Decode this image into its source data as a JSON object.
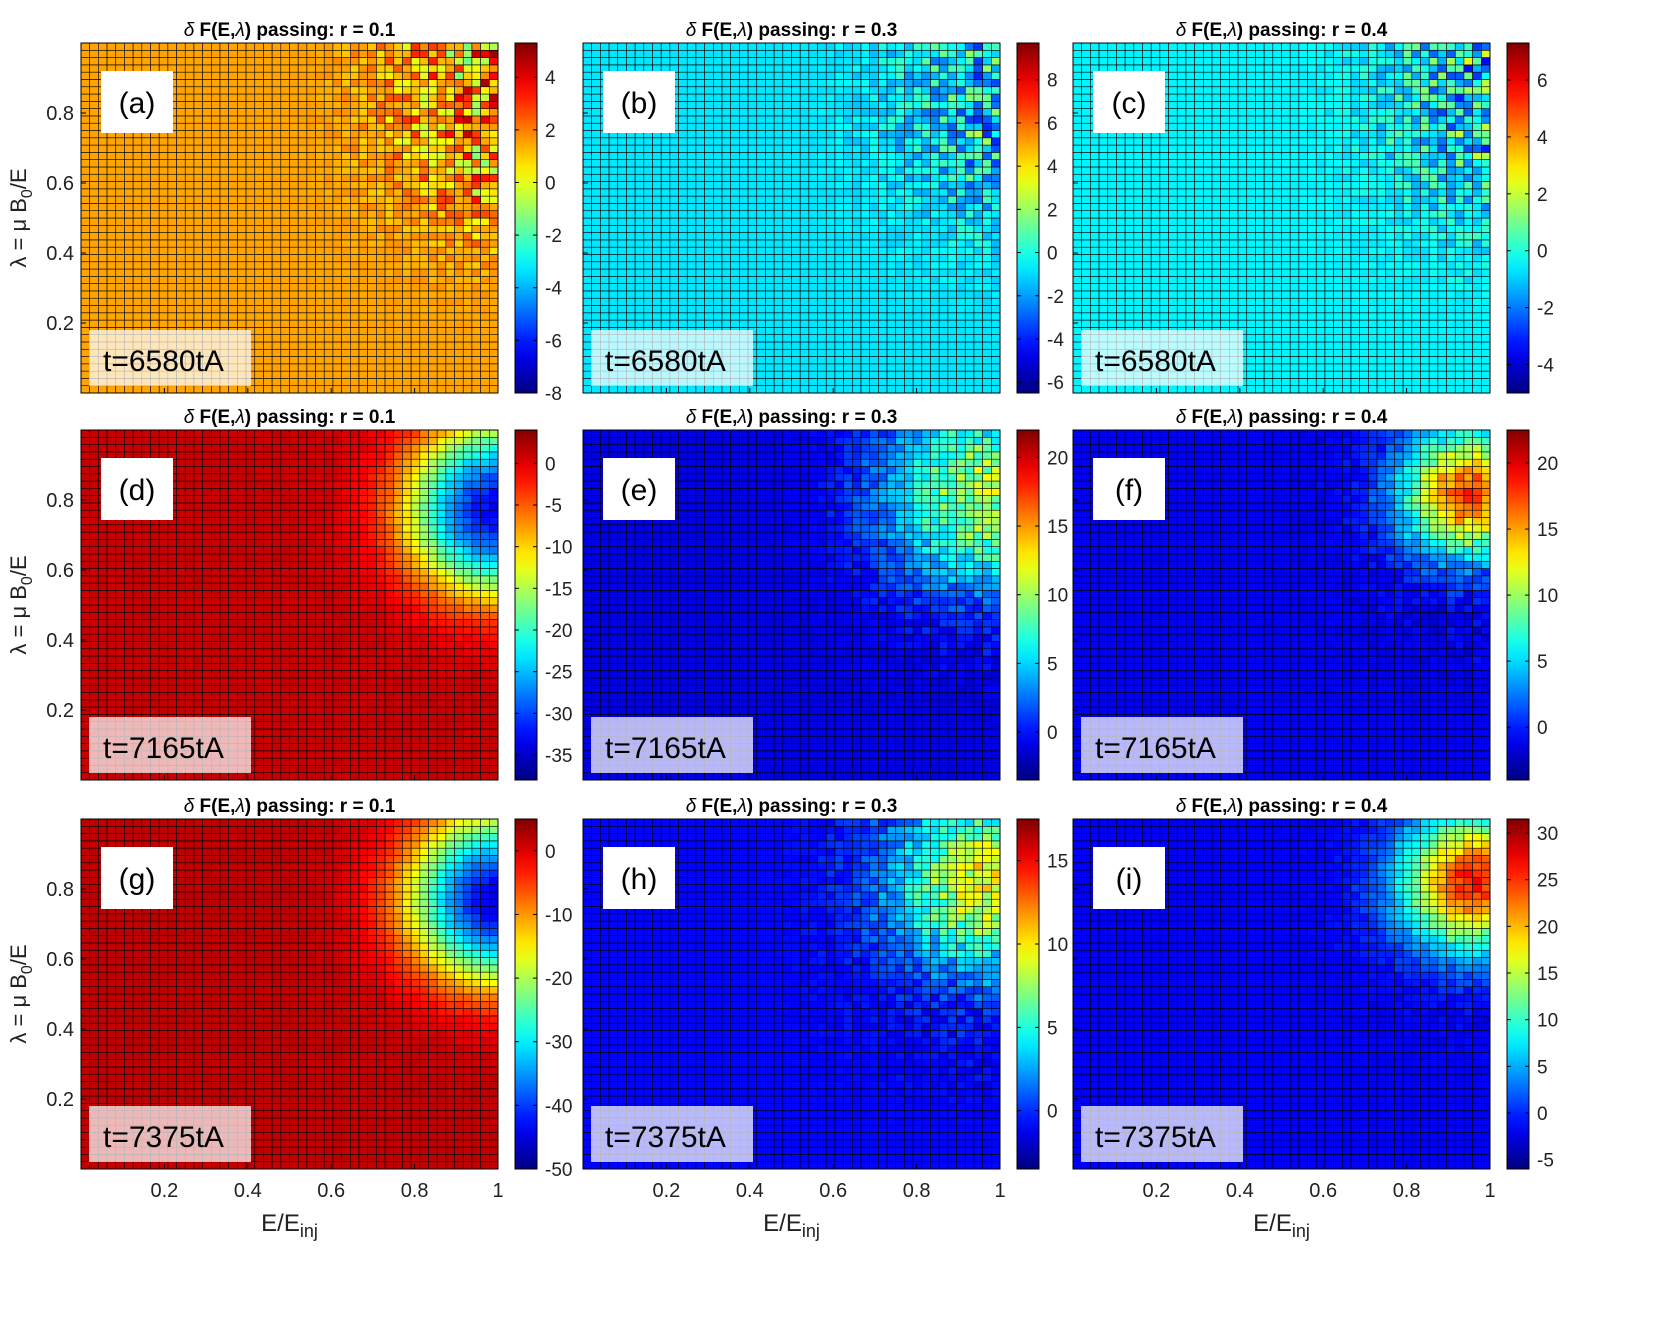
{
  "figure": {
    "ylabel": "λ = μ B",
    "ylabel_sub": "0",
    "ylabel_end": "/E",
    "xlabel": "E/E",
    "xlabel_sub": "inj"
  },
  "chart_data": [
    {
      "type": "heatmap",
      "panel": "(a)",
      "time": "t=6580tA",
      "title_prefix": "δ",
      "title_main": " F(E,",
      "title_lambda": "λ",
      "title_rest": ") passing: r = 0.1",
      "r": 0.1,
      "clim": [
        -8,
        5.3
      ],
      "cbar_ticks": [
        -8,
        -6,
        -4,
        -2,
        0,
        2,
        4
      ],
      "xlim": [
        0,
        1
      ],
      "ylim": [
        0,
        1
      ],
      "xticks": [
        0.2,
        0.4,
        0.6,
        0.8,
        1
      ],
      "yticks": [
        0.2,
        0.4,
        0.6,
        0.8
      ],
      "ylabel": "λ = μ B0/E",
      "xlabel": "",
      "grid": [
        48,
        48
      ],
      "pattern": "noise",
      "base": 1.5,
      "center": [
        0.95,
        0.8
      ],
      "radius": 0.3,
      "amp": 0,
      "noise": 3.5,
      "color_low": "#0000b0",
      "color_high": "#a00000"
    },
    {
      "type": "heatmap",
      "panel": "(b)",
      "time": "t=6580tA",
      "title_prefix": "δ",
      "title_main": " F(E,",
      "title_lambda": "λ",
      "title_rest": ") passing: r = 0.3",
      "r": 0.3,
      "clim": [
        -6.5,
        9.7
      ],
      "cbar_ticks": [
        -6,
        -4,
        -2,
        0,
        2,
        4,
        6,
        8
      ],
      "xlim": [
        0,
        1
      ],
      "ylim": [
        0,
        1
      ],
      "xticks": [
        0.2,
        0.4,
        0.6,
        0.8,
        1
      ],
      "yticks": [
        0.2,
        0.4,
        0.6,
        0.8
      ],
      "ylabel": "",
      "xlabel": "",
      "grid": [
        48,
        48
      ],
      "pattern": "noise",
      "base": -0.8,
      "center": [
        0.95,
        0.8
      ],
      "radius": 0.3,
      "amp": 0,
      "noise": 3.5
    },
    {
      "type": "heatmap",
      "panel": "(c)",
      "time": "t=6580tA",
      "title_prefix": "δ",
      "title_main": " F(E,",
      "title_lambda": "λ",
      "title_rest": ") passing: r = 0.4",
      "r": 0.4,
      "clim": [
        -5,
        7.3
      ],
      "cbar_ticks": [
        -4,
        -2,
        0,
        2,
        4,
        6
      ],
      "xlim": [
        0,
        1
      ],
      "ylim": [
        0,
        1
      ],
      "xticks": [
        0.2,
        0.4,
        0.6,
        0.8,
        1
      ],
      "yticks": [
        0.2,
        0.4,
        0.6,
        0.8
      ],
      "ylabel": "",
      "xlabel": "",
      "grid": [
        48,
        48
      ],
      "pattern": "noise",
      "base": -0.5,
      "center": [
        0.95,
        0.8
      ],
      "radius": 0.3,
      "amp": 0,
      "noise": 3.0
    },
    {
      "type": "heatmap",
      "panel": "(d)",
      "time": "t=7165tA",
      "title_prefix": "δ",
      "title_main": " F(E,",
      "title_lambda": "λ",
      "title_rest": ") passing: r = 0.1",
      "r": 0.1,
      "clim": [
        -38,
        4
      ],
      "cbar_ticks": [
        -35,
        -30,
        -25,
        -20,
        -15,
        -10,
        -5,
        0
      ],
      "xlim": [
        0,
        1
      ],
      "ylim": [
        0,
        1
      ],
      "xticks": [
        0.2,
        0.4,
        0.6,
        0.8,
        1
      ],
      "yticks": [
        0.2,
        0.4,
        0.6,
        0.8
      ],
      "ylabel": "λ = μ B0/E",
      "xlabel": "",
      "grid": [
        48,
        48
      ],
      "pattern": "hole",
      "base": 1,
      "center": [
        1.0,
        0.77
      ],
      "radius": 0.2,
      "amp": -34,
      "noise": 1.5
    },
    {
      "type": "heatmap",
      "panel": "(e)",
      "time": "t=7165tA",
      "title_prefix": "δ",
      "title_main": " F(E,",
      "title_lambda": "λ",
      "title_rest": ") passing: r = 0.3",
      "r": 0.3,
      "clim": [
        -3.5,
        22
      ],
      "cbar_ticks": [
        0,
        5,
        10,
        15,
        20
      ],
      "xlim": [
        0,
        1
      ],
      "ylim": [
        0,
        1
      ],
      "xticks": [
        0.2,
        0.4,
        0.6,
        0.8,
        1
      ],
      "yticks": [
        0.2,
        0.4,
        0.6,
        0.8
      ],
      "ylabel": "",
      "xlabel": "",
      "grid": [
        48,
        48
      ],
      "pattern": "bump",
      "base": -1,
      "center": [
        0.97,
        0.82
      ],
      "radius": 0.25,
      "amp": 12,
      "noise": 2.5
    },
    {
      "type": "heatmap",
      "panel": "(f)",
      "time": "t=7165tA",
      "title_prefix": "δ",
      "title_main": " F(E,",
      "title_lambda": "λ",
      "title_rest": ") passing: r = 0.4",
      "r": 0.4,
      "clim": [
        -4,
        22.5
      ],
      "cbar_ticks": [
        0,
        5,
        10,
        15,
        20
      ],
      "xlim": [
        0,
        1
      ],
      "ylim": [
        0,
        1
      ],
      "xticks": [
        0.2,
        0.4,
        0.6,
        0.8,
        1
      ],
      "yticks": [
        0.2,
        0.4,
        0.6,
        0.8
      ],
      "ylabel": "",
      "xlabel": "",
      "grid": [
        48,
        48
      ],
      "pattern": "bump",
      "base": -1,
      "center": [
        0.95,
        0.82
      ],
      "radius": 0.16,
      "amp": 19,
      "noise": 1.8
    },
    {
      "type": "heatmap",
      "panel": "(g)",
      "time": "t=7375tA",
      "title_prefix": "δ",
      "title_main": " F(E,",
      "title_lambda": "λ",
      "title_rest": ") passing: r = 0.1",
      "r": 0.1,
      "clim": [
        -50,
        5
      ],
      "cbar_ticks": [
        -50,
        -40,
        -30,
        -20,
        -10,
        0
      ],
      "xlim": [
        0,
        1
      ],
      "ylim": [
        0,
        1
      ],
      "xticks": [
        0.2,
        0.4,
        0.6,
        0.8,
        1
      ],
      "yticks": [
        0.2,
        0.4,
        0.6,
        0.8
      ],
      "ylabel": "λ = μ B0/E",
      "xlabel": "E/Einj",
      "grid": [
        48,
        48
      ],
      "pattern": "hole",
      "base": 1.5,
      "center": [
        1.0,
        0.77
      ],
      "radius": 0.2,
      "amp": -46,
      "noise": 1.5
    },
    {
      "type": "heatmap",
      "panel": "(h)",
      "time": "t=7375tA",
      "title_prefix": "δ",
      "title_main": " F(E,",
      "title_lambda": "λ",
      "title_rest": ") passing: r = 0.3",
      "r": 0.3,
      "clim": [
        -3.5,
        17.5
      ],
      "cbar_ticks": [
        0,
        5,
        10,
        15
      ],
      "xlim": [
        0,
        1
      ],
      "ylim": [
        0,
        1
      ],
      "xticks": [
        0.2,
        0.4,
        0.6,
        0.8,
        1
      ],
      "yticks": [
        0.2,
        0.4,
        0.6,
        0.8
      ],
      "ylabel": "",
      "xlabel": "E/Einj",
      "grid": [
        48,
        48
      ],
      "pattern": "bump",
      "base": -0.8,
      "center": [
        0.97,
        0.82
      ],
      "radius": 0.22,
      "amp": 11,
      "noise": 2.2
    },
    {
      "type": "heatmap",
      "panel": "(i)",
      "time": "t=7375tA",
      "title_prefix": "δ",
      "title_main": " F(E,",
      "title_lambda": "λ",
      "title_rest": ") passing: r = 0.4",
      "r": 0.4,
      "clim": [
        -6,
        31.5
      ],
      "cbar_ticks": [
        -5,
        0,
        5,
        10,
        15,
        20,
        25,
        30
      ],
      "xlim": [
        0,
        1
      ],
      "ylim": [
        0,
        1
      ],
      "xticks": [
        0.2,
        0.4,
        0.6,
        0.8,
        1
      ],
      "yticks": [
        0.2,
        0.4,
        0.6,
        0.8
      ],
      "ylabel": "",
      "xlabel": "E/Einj",
      "grid": [
        48,
        48
      ],
      "pattern": "bump",
      "base": -1.5,
      "center": [
        0.96,
        0.82
      ],
      "radius": 0.17,
      "amp": 28,
      "noise": 1.8
    }
  ]
}
